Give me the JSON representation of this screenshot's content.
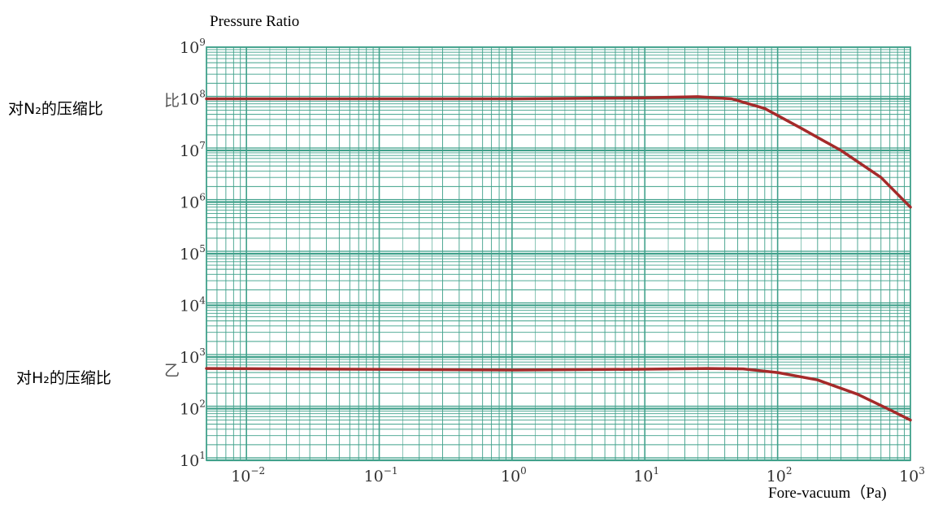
{
  "chart_data": {
    "type": "line",
    "title": "Pressure Ratio",
    "xlabel": "Fore-vacuum（Pa)",
    "ylabel": "",
    "x_scale": "log",
    "y_scale": "log",
    "xlim": [
      0.005,
      1000
    ],
    "ylim": [
      10,
      1000000000
    ],
    "grid": true,
    "x_ticks": [
      {
        "base": "10",
        "exp": "-2",
        "value": 0.01
      },
      {
        "base": "10",
        "exp": "-1",
        "value": 0.1
      },
      {
        "base": "10",
        "exp": "0",
        "value": 1
      },
      {
        "base": "10",
        "exp": "1",
        "value": 10
      },
      {
        "base": "10",
        "exp": "2",
        "value": 100
      },
      {
        "base": "10",
        "exp": "3",
        "value": 1000
      }
    ],
    "y_ticks": [
      {
        "base": "10",
        "exp": "1",
        "value": 10
      },
      {
        "base": "10",
        "exp": "2",
        "value": 100
      },
      {
        "base": "10",
        "exp": "3",
        "value": 1000
      },
      {
        "base": "10",
        "exp": "4",
        "value": 10000
      },
      {
        "base": "10",
        "exp": "5",
        "value": 100000
      },
      {
        "base": "10",
        "exp": "6",
        "value": 1000000
      },
      {
        "base": "10",
        "exp": "7",
        "value": 10000000
      },
      {
        "base": "10",
        "exp": "8",
        "value": 100000000
      },
      {
        "base": "10",
        "exp": "9",
        "value": 1000000000
      }
    ],
    "series": [
      {
        "name": "对N₂的压缩比",
        "color": "#a52a2a",
        "x": [
          0.005,
          1,
          10,
          25,
          45,
          80,
          150,
          300,
          600,
          1000
        ],
        "y": [
          100000000,
          100000000,
          105000000,
          110000000,
          100000000,
          65000000,
          27000000,
          10000000,
          3000000,
          800000
        ]
      },
      {
        "name": "对H₂的压缩比",
        "color": "#a52a2a",
        "x": [
          0.005,
          1,
          10,
          30,
          55,
          100,
          200,
          400,
          700,
          1000
        ],
        "y": [
          600,
          560,
          580,
          600,
          590,
          500,
          360,
          190,
          95,
          60
        ]
      }
    ]
  },
  "stray_marks": {
    "n2": "比",
    "h2": "乙"
  },
  "colors": {
    "grid": "#3fa08a",
    "line": "#a52a2a"
  }
}
